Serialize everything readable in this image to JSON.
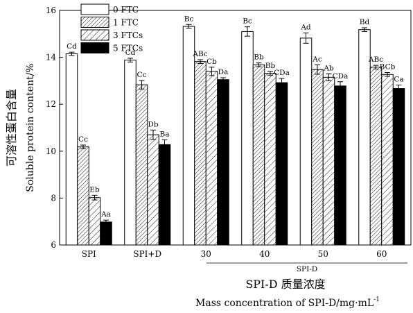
{
  "chart_data": {
    "type": "bar",
    "categories": [
      "SPI",
      "SPI+D",
      "30",
      "40",
      "50",
      "60"
    ],
    "group_axis_label": "SPI-D",
    "group_axis_categories": [
      "30",
      "40",
      "50",
      "60"
    ],
    "series": [
      {
        "name": "0 FTC",
        "values": [
          14.15,
          13.88,
          15.32,
          15.1,
          14.82,
          15.18
        ],
        "errors": [
          0.07,
          0.08,
          0.08,
          0.2,
          0.22,
          0.08
        ],
        "labels": [
          "Cd",
          "Cd",
          "Bc",
          "Bc",
          "Ad",
          "Bd"
        ],
        "color": "#ffffff",
        "fill": "none"
      },
      {
        "name": "1 FTC",
        "values": [
          10.18,
          12.83,
          13.82,
          13.68,
          13.48,
          13.58
        ],
        "errors": [
          0.08,
          0.18,
          0.08,
          0.08,
          0.2,
          0.08
        ],
        "labels": [
          "Cc",
          "Cc",
          "ABc",
          "Bb",
          "Ac",
          "ABc"
        ],
        "color": "#ffffff",
        "fill": "hatch-fine"
      },
      {
        "name": "3 FTCs",
        "values": [
          8.02,
          10.7,
          13.4,
          13.32,
          13.15,
          13.27
        ],
        "errors": [
          0.1,
          0.2,
          0.18,
          0.08,
          0.15,
          0.08
        ],
        "labels": [
          "Eb",
          "Db",
          "Cb",
          "Bb",
          "Ab",
          "BCb"
        ],
        "color": "#ffffff",
        "fill": "hatch-coarse"
      },
      {
        "name": "5 FTCs",
        "values": [
          6.98,
          10.28,
          13.05,
          12.92,
          12.78,
          12.67
        ],
        "errors": [
          0.08,
          0.2,
          0.08,
          0.18,
          0.18,
          0.15
        ],
        "labels": [
          "Aa",
          "Ba",
          "Da",
          "CDa",
          "CDa",
          "Ca"
        ],
        "color": "#000000",
        "fill": "solid"
      }
    ],
    "ylim": [
      6,
      16
    ],
    "yticks": [
      "6",
      "8",
      "10",
      "12",
      "14",
      "16"
    ],
    "ylabel_cn": "可溶性蛋白含量",
    "ylabel_en": "Soluble protein content/%",
    "xlabel_cn": "SPI-D 质量浓度",
    "xlabel_en": "Mass concentration of SPI-D/mg·mL",
    "xlabel_en_sup": "-1",
    "legend_position": "top-left"
  }
}
